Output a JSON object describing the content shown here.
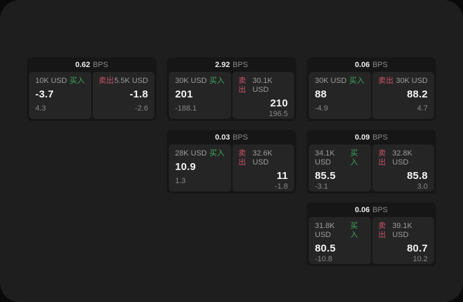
{
  "labels": {
    "bps_unit": "BPS",
    "buy": "买入",
    "sell": "卖出"
  },
  "colors": {
    "buy_accent": "#3fa75d",
    "sell_accent": "#c8536a",
    "surface": "#1e1e1e",
    "card": "#161616",
    "panel": "#252525"
  },
  "cards": [
    {
      "bps": "0.62",
      "buy": {
        "amount": "10K USD",
        "value": "-3.7",
        "sub": "4.3"
      },
      "sell": {
        "amount": "5.5K USD",
        "value": "-1.8",
        "sub": "-2.6"
      }
    },
    {
      "bps": "2.92",
      "buy": {
        "amount": "30K USD",
        "value": "201",
        "sub": "-188.1"
      },
      "sell": {
        "amount": "30.1K USD",
        "value": "210",
        "sub": "196.5"
      }
    },
    {
      "bps": "0.06",
      "buy": {
        "amount": "30K USD",
        "value": "88",
        "sub": "-4.9"
      },
      "sell": {
        "amount": "30K USD",
        "value": "88.2",
        "sub": "4.7"
      }
    },
    {
      "bps": "0.03",
      "buy": {
        "amount": "28K USD",
        "value": "10.9",
        "sub": "1.3"
      },
      "sell": {
        "amount": "32.6K USD",
        "value": "11",
        "sub": "-1.8"
      }
    },
    {
      "bps": "0.09",
      "buy": {
        "amount": "34.1K USD",
        "value": "85.5",
        "sub": "-3.1"
      },
      "sell": {
        "amount": "32.8K USD",
        "value": "85.8",
        "sub": "3.0"
      }
    },
    {
      "bps": "0.06",
      "buy": {
        "amount": "31.8K USD",
        "value": "80.5",
        "sub": "-10.8"
      },
      "sell": {
        "amount": "39.1K USD",
        "value": "80.7",
        "sub": "10.2"
      }
    }
  ]
}
